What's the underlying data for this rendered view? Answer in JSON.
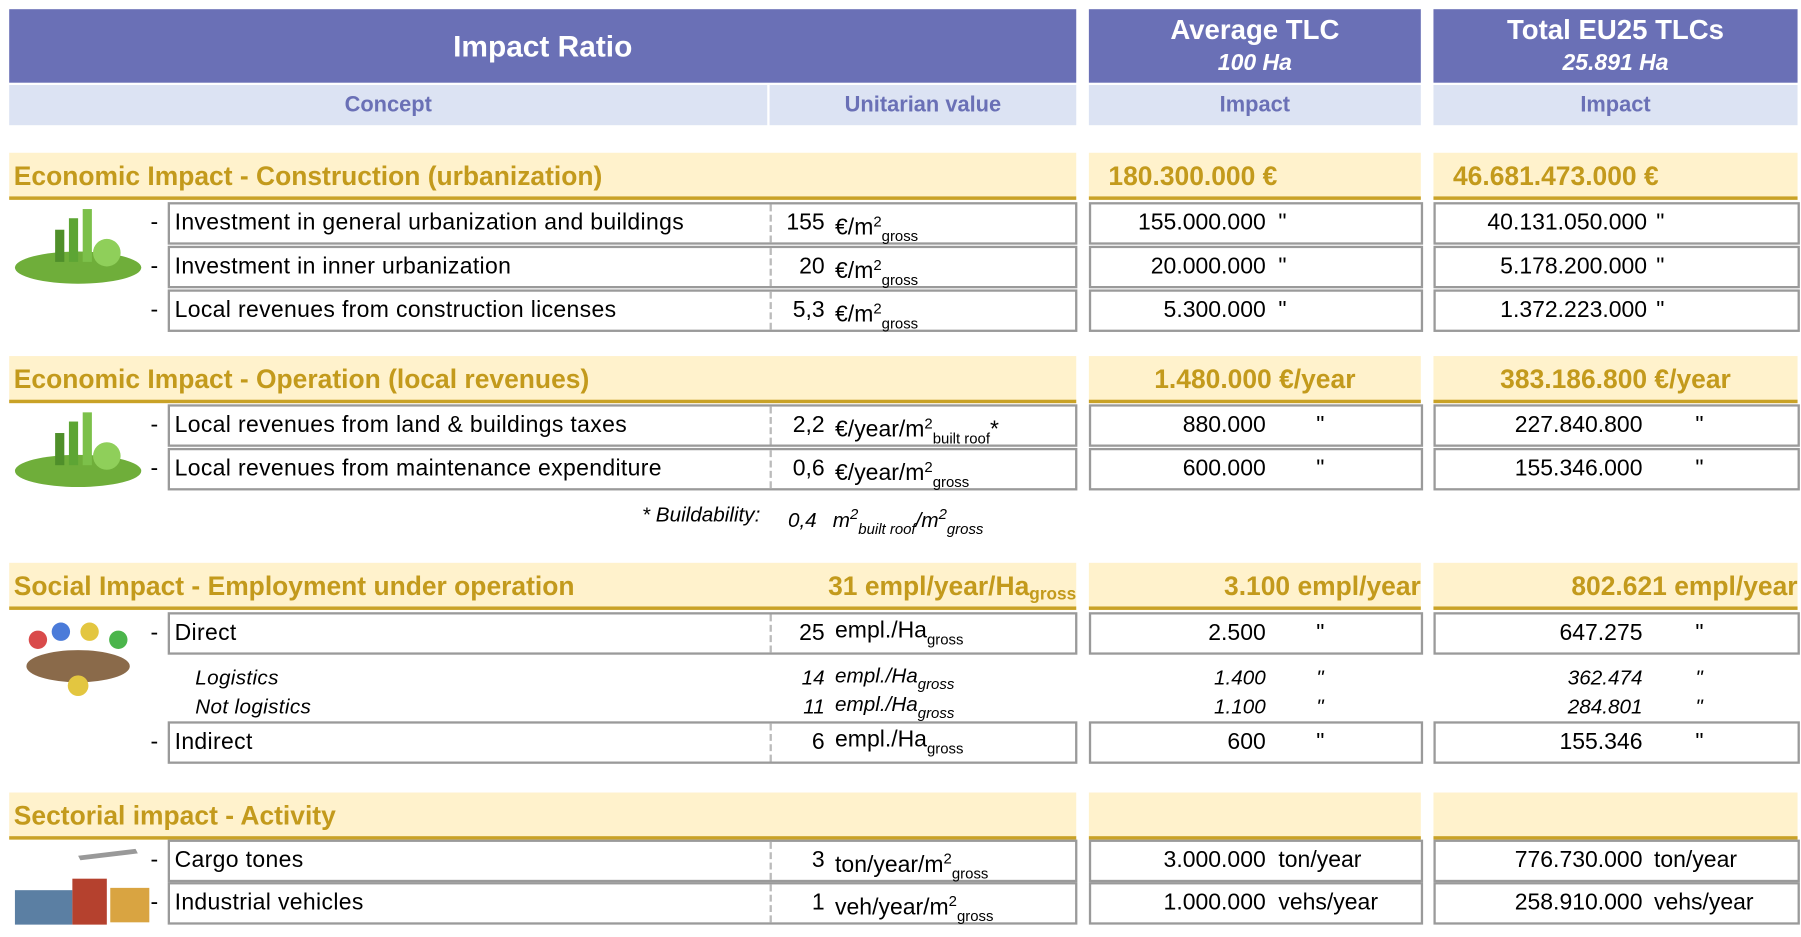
{
  "dash": "-",
  "header": {
    "title": "Impact Ratio",
    "concept": "Concept",
    "unitarian": "Unitarian value",
    "avg_title": "Average TLC",
    "avg_area": "100  Ha",
    "avg_impact": "Impact",
    "total_title": "Total EU25 TLCs",
    "total_area": "25.891  Ha",
    "total_impact": "Impact"
  },
  "sections": [
    {
      "title": "Economic Impact - Construction (urbanization)",
      "avg": "180.300.000 €",
      "total": "46.681.473.000 €",
      "rows": [
        {
          "label": "Investment in general urbanization and buildings",
          "value": "155",
          "unit": {
            "base": "€/m",
            "sup": "2",
            "sub": "gross"
          },
          "avg": "155.000.000",
          "avg_unit": "\"",
          "total": "40.131.050.000",
          "total_unit": "\""
        },
        {
          "label": "Investment in inner urbanization",
          "value": "20",
          "unit": {
            "base": "€/m",
            "sup": "2",
            "sub": "gross"
          },
          "avg": "20.000.000",
          "avg_unit": "\"",
          "total": "5.178.200.000",
          "total_unit": "\""
        },
        {
          "label": "Local revenues from construction licenses",
          "value": "5,3",
          "unit": {
            "base": "€/m",
            "sup": "2",
            "sub": "gross"
          },
          "avg": "5.300.000",
          "avg_unit": "\"",
          "total": "1.372.223.000",
          "total_unit": "\""
        }
      ]
    },
    {
      "title": "Economic Impact - Operation (local revenues)",
      "avg": "1.480.000 €/year",
      "total": "383.186.800 €/year",
      "rows": [
        {
          "label": "Local revenues from land & buildings taxes",
          "value": "2,2",
          "unit": {
            "base": "€/year/m",
            "sup": "2",
            "sub": "built roof",
            "suffix": "*"
          },
          "avg": "880.000",
          "avg_unit": "\"",
          "total": "227.840.800",
          "total_unit": "\""
        },
        {
          "label": "Local revenues from maintenance expenditure",
          "value": "0,6",
          "unit": {
            "base": "€/year/m",
            "sup": "2",
            "sub": "gross"
          },
          "avg": "600.000",
          "avg_unit": "\"",
          "total": "155.346.000",
          "total_unit": "\""
        }
      ],
      "note": {
        "label": "* Buildability:",
        "value": "0,4",
        "base": "m",
        "sup": "2",
        "sub": "built roof",
        "mid": "/m",
        "sup2": "2",
        "sub2": "gross"
      }
    },
    {
      "title": "Social Impact - Employment under operation",
      "ratio": {
        "text": "31 empl/year/Ha",
        "sub": "gross"
      },
      "avg": "3.100  empl/year",
      "total": "802.621  empl/year",
      "rows": [
        {
          "label": "Direct",
          "value": "25",
          "unit": {
            "base": "empl./Ha",
            "sub": "gross"
          },
          "avg": "2.500",
          "avg_unit": "\"",
          "total": "647.275",
          "total_unit": "\""
        },
        {
          "label": "Logistics",
          "italic": true,
          "value": "14",
          "unit": {
            "base": "empl./Ha",
            "sub": "gross"
          },
          "avg": "1.400",
          "avg_unit": "\"",
          "total": "362.474",
          "total_unit": "\""
        },
        {
          "label": "Not logistics",
          "italic": true,
          "value": "11",
          "unit": {
            "base": "empl./Ha",
            "sub": "gross"
          },
          "avg": "1.100",
          "avg_unit": "\"",
          "total": "284.801",
          "total_unit": "\""
        },
        {
          "label": "Indirect",
          "value": "6",
          "unit": {
            "base": "empl./Ha",
            "sub": "gross"
          },
          "avg": "600",
          "avg_unit": "\"",
          "total": "155.346",
          "total_unit": "\""
        }
      ]
    },
    {
      "title": "Sectorial impact - Activity",
      "rows": [
        {
          "label": "Cargo tones",
          "value": "3",
          "unit": {
            "base": "ton/year/m",
            "sup": "2",
            "sub": "gross"
          },
          "avg": "3.000.000",
          "avg_unit": "ton/year",
          "total": "776.730.000",
          "total_unit": "ton/year"
        },
        {
          "label": "Industrial vehicles",
          "value": "1",
          "unit": {
            "base": "veh/year/m",
            "sup": "2",
            "sub": "gross"
          },
          "avg": "1.000.000",
          "avg_unit": "vehs/year",
          "total": "258.910.000",
          "total_unit": "vehs/year"
        }
      ]
    }
  ]
}
